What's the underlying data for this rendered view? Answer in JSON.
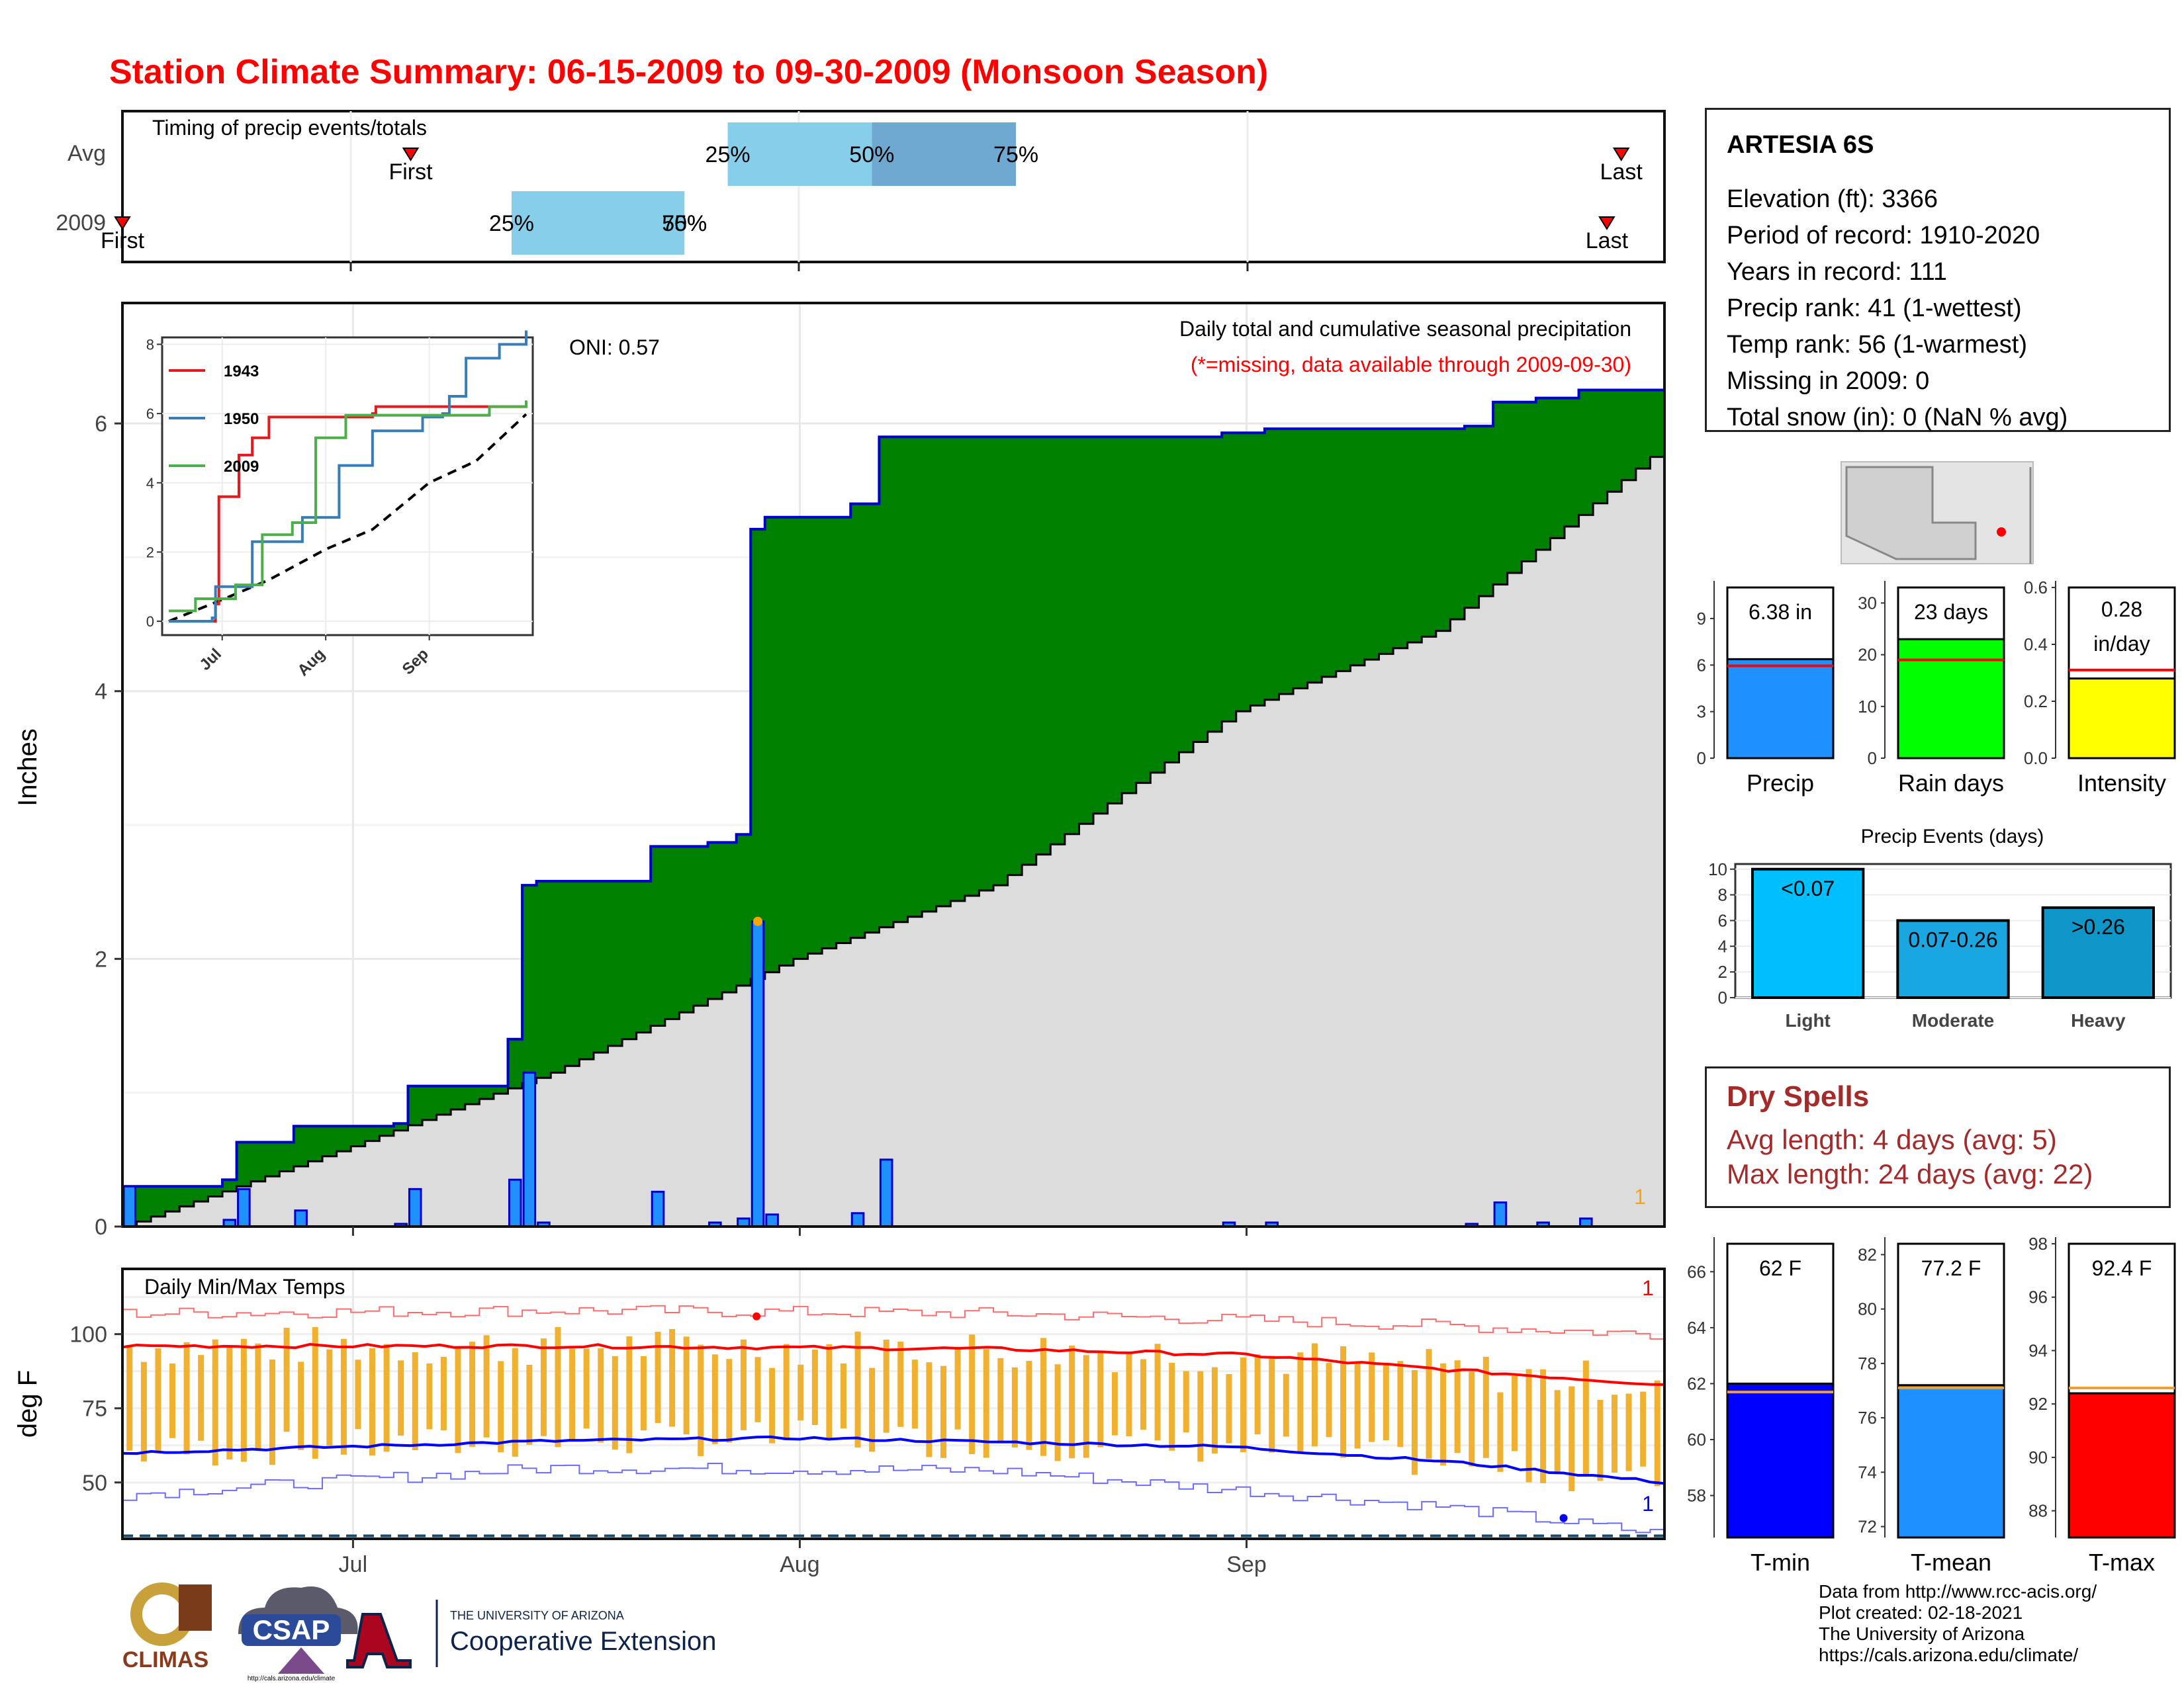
{
  "title": "Station Climate Summary: 06-15-2009 to 09-30-2009 (Monsoon Season)",
  "colors": {
    "title": "#ff0000",
    "green": "#008000",
    "grey_fill": "#dcdcdc",
    "bar_blue": "#1e90ff",
    "bar_edge": "#0000cd",
    "lightblue": "#87ceeb",
    "midblue": "#6fa8d0",
    "tmax": "#ff0000",
    "tmin": "#0000ff",
    "temp_bar": "#f0b030",
    "spell_red": "#a52a2a"
  },
  "timing": {
    "label": "Timing of precip events/totals",
    "rows": [
      "Avg",
      "2009"
    ],
    "avg": {
      "first": "First",
      "last": "Last",
      "p25": "25%",
      "p50": "50%",
      "p75": "75%",
      "first_date": "2009-07-05",
      "last_date": "2009-09-27",
      "p25_date": "2009-07-27",
      "p50_date": "2009-08-06",
      "p75_date": "2009-08-16"
    },
    "y2009": {
      "first": "First",
      "last": "Last",
      "p25": "25%",
      "p50": "50%",
      "p75": "75%",
      "first_date": "2009-06-15",
      "last_date": "2009-09-26",
      "p25_date": "2009-07-12",
      "p50_date": "2009-07-24",
      "p75_date": "2009-07-24"
    }
  },
  "precip_panel": {
    "ylabel": "Inches",
    "oni": "ONI: 0.57",
    "desc": "Daily total and cumulative seasonal precipitation",
    "missing_note": "(*=missing, data available through 2009-09-30)",
    "count_label": "1",
    "ylim": [
      0,
      6.9
    ],
    "yticks": [
      "0",
      "2",
      "4",
      "6"
    ]
  },
  "inset": {
    "series": [
      "1943",
      "1950",
      "2009"
    ],
    "colors": [
      "#e41a1c",
      "#377eb8",
      "#4daf4a"
    ],
    "yticks": [
      "0",
      "2",
      "4",
      "6",
      "8"
    ],
    "xticks": [
      "Jul",
      "Aug",
      "Sep"
    ]
  },
  "temp_panel": {
    "ylabel": "deg F",
    "label": "Daily Min/Max Temps",
    "yticks": [
      "50",
      "75",
      "100"
    ],
    "max_count": "1",
    "min_count": "1",
    "ylim": [
      31,
      122
    ]
  },
  "xticks": [
    "Jul",
    "Aug",
    "Sep"
  ],
  "station": {
    "name": "ARTESIA 6S",
    "lines": [
      "Elevation (ft): 3366",
      "Period of record: 1910-2020",
      "Years in record: 111",
      "Precip rank: 41 (1-wettest)",
      "Temp rank: 56 (1-warmest)",
      "Missing in 2009: 0",
      "Total snow (in): 0 (NaN % avg)"
    ]
  },
  "summary_bars": [
    {
      "label": "Precip",
      "value_text": "6.38 in",
      "value": 6.38,
      "avg": 5.95,
      "ymax": 11,
      "yticks": [
        "0",
        "3",
        "6",
        "9"
      ],
      "color": "#1e90ff"
    },
    {
      "label": "Rain days",
      "value_text": "23 days",
      "value": 23,
      "avg": 19,
      "ymax": 33,
      "yticks": [
        "0",
        "10",
        "20",
        "30"
      ],
      "color": "#00ff00"
    },
    {
      "label": "Intensity",
      "value_text": "0.28 in/day",
      "value": 0.28,
      "avg": 0.31,
      "ymax": 0.6,
      "yticks": [
        "0.0",
        "0.2",
        "0.4",
        "0.6"
      ],
      "color": "#ffff00"
    }
  ],
  "events": {
    "title": "Precip Events (days)",
    "categories": [
      "Light",
      "Moderate",
      "Heavy"
    ],
    "labels": [
      "<0.07",
      "0.07-0.26",
      ">0.26"
    ],
    "values": [
      10,
      6,
      7
    ],
    "colors": [
      "#00bfff",
      "#1aa6e0",
      "#0e96c8"
    ],
    "yticks": [
      "0",
      "2",
      "4",
      "6",
      "8",
      "10"
    ]
  },
  "dry_spells": {
    "title": "Dry Spells",
    "avg": "Avg length: 4 days (avg: 5)",
    "max": "Max length: 24 days (avg: 22)"
  },
  "temp_bars": [
    {
      "label": "T-min",
      "value_text": "62 F",
      "value": 62,
      "avg": 61.7,
      "ymin": 56.5,
      "ymax": 67,
      "yticks": [
        "58",
        "60",
        "62",
        "64",
        "66"
      ],
      "color": "#0000ff"
    },
    {
      "label": "T-mean",
      "value_text": "77.2 F",
      "value": 77.2,
      "avg": 77.1,
      "ymin": 71.6,
      "ymax": 82.4,
      "yticks": [
        "72",
        "74",
        "76",
        "78",
        "80",
        "82"
      ],
      "color": "#1e90ff"
    },
    {
      "label": "T-max",
      "value_text": "92.4 F",
      "value": 92.4,
      "avg": 92.6,
      "ymin": 87,
      "ymax": 98,
      "yticks": [
        "88",
        "90",
        "92",
        "94",
        "96",
        "98"
      ],
      "color": "#ff0000"
    }
  ],
  "credits": [
    "Data from http://www.rcc-acis.org/",
    "Plot created: 02-18-2021",
    "The University of Arizona",
    "https://cals.arizona.edu/climate/"
  ],
  "logos": {
    "climas": "CLIMAS",
    "csap": "CSAP",
    "csap_url": "http://cals.arizona.edu/climate",
    "ua_small": "THE UNIVERSITY OF ARIZONA",
    "ua_big": "Cooperative Extension"
  },
  "chart_data": {
    "type": "area",
    "title": "Station Climate Summary: 06-15-2009 to 09-30-2009 (Monsoon Season)",
    "ylabel": "Inches",
    "x_start": "2009-06-15",
    "x_end": "2009-09-30",
    "xticks": [
      "Jul",
      "Aug",
      "Sep"
    ],
    "daily_precip": {
      "2009-06-15": 0.3,
      "2009-06-22": 0.05,
      "2009-06-23": 0.28,
      "2009-06-27": 0.12,
      "2009-07-04": 0.02,
      "2009-07-05": 0.28,
      "2009-07-12": 0.35,
      "2009-07-13": 1.15,
      "2009-07-14": 0.03,
      "2009-07-22": 0.26,
      "2009-07-26": 0.03,
      "2009-07-28": 0.06,
      "2009-07-29": 2.28,
      "2009-07-30": 0.09,
      "2009-08-05": 0.1,
      "2009-08-07": 0.5,
      "2009-08-31": 0.03,
      "2009-09-03": 0.03,
      "2009-09-17": 0.02,
      "2009-09-19": 0.18,
      "2009-09-22": 0.03,
      "2009-09-25": 0.06
    },
    "avg_cumulative": [
      [
        "2009-06-15",
        0
      ],
      [
        "2009-07-01",
        0.6
      ],
      [
        "2009-07-15",
        1.15
      ],
      [
        "2009-08-01",
        2.0
      ],
      [
        "2009-08-15",
        2.55
      ],
      [
        "2009-09-01",
        3.85
      ],
      [
        "2009-09-15",
        4.45
      ],
      [
        "2009-09-30",
        5.75
      ]
    ],
    "inset_series": {
      "1943": [
        [
          "2009-06-15",
          0
        ],
        [
          "2009-06-28",
          0
        ],
        [
          "2009-06-29",
          0.5
        ],
        [
          "2009-06-30",
          3.6
        ],
        [
          "2009-07-05",
          3.6
        ],
        [
          "2009-07-06",
          4.8
        ],
        [
          "2009-07-10",
          5.3
        ],
        [
          "2009-07-15",
          5.9
        ],
        [
          "2009-08-15",
          6.0
        ],
        [
          "2009-08-16",
          6.2
        ],
        [
          "2009-09-30",
          6.3
        ]
      ],
      "1950": [
        [
          "2009-06-15",
          0
        ],
        [
          "2009-06-28",
          0.1
        ],
        [
          "2009-06-29",
          1.0
        ],
        [
          "2009-07-05",
          1.0
        ],
        [
          "2009-07-10",
          2.3
        ],
        [
          "2009-07-25",
          3.0
        ],
        [
          "2009-08-05",
          4.5
        ],
        [
          "2009-08-15",
          5.5
        ],
        [
          "2009-08-30",
          5.9
        ],
        [
          "2009-09-05",
          6.0
        ],
        [
          "2009-09-07",
          6.5
        ],
        [
          "2009-09-12",
          7.6
        ],
        [
          "2009-09-22",
          8.0
        ],
        [
          "2009-09-30",
          8.4
        ]
      ],
      "2009": [
        [
          "2009-06-15",
          0.3
        ],
        [
          "2009-06-23",
          0.65
        ],
        [
          "2009-07-05",
          1.05
        ],
        [
          "2009-07-13",
          2.5
        ],
        [
          "2009-07-22",
          2.85
        ],
        [
          "2009-07-29",
          5.3
        ],
        [
          "2009-08-07",
          5.95
        ],
        [
          "2009-09-19",
          6.2
        ],
        [
          "2009-09-30",
          6.38
        ]
      ]
    },
    "temps": {
      "tmax_avg": [
        [
          "2009-06-15",
          96
        ],
        [
          "2009-07-15",
          96
        ],
        [
          "2009-08-15",
          95
        ],
        [
          "2009-09-01",
          93
        ],
        [
          "2009-09-15",
          88
        ],
        [
          "2009-09-30",
          83
        ]
      ],
      "tmin_avg": [
        [
          "2009-06-15",
          60
        ],
        [
          "2009-07-15",
          64
        ],
        [
          "2009-08-01",
          65
        ],
        [
          "2009-08-31",
          62
        ],
        [
          "2009-09-15",
          57
        ],
        [
          "2009-09-30",
          50
        ]
      ],
      "record_max": [
        [
          "2009-06-15",
          107
        ],
        [
          "2009-07-15",
          108
        ],
        [
          "2009-08-15",
          107
        ],
        [
          "2009-09-15",
          103
        ],
        [
          "2009-09-30",
          100
        ]
      ],
      "record_min": [
        [
          "2009-06-15",
          46
        ],
        [
          "2009-07-15",
          55
        ],
        [
          "2009-08-15",
          54
        ],
        [
          "2009-09-15",
          42
        ],
        [
          "2009-09-30",
          33
        ]
      ],
      "daily_max_range": [
        94,
        107
      ],
      "daily_min_range": [
        49,
        66
      ]
    }
  }
}
